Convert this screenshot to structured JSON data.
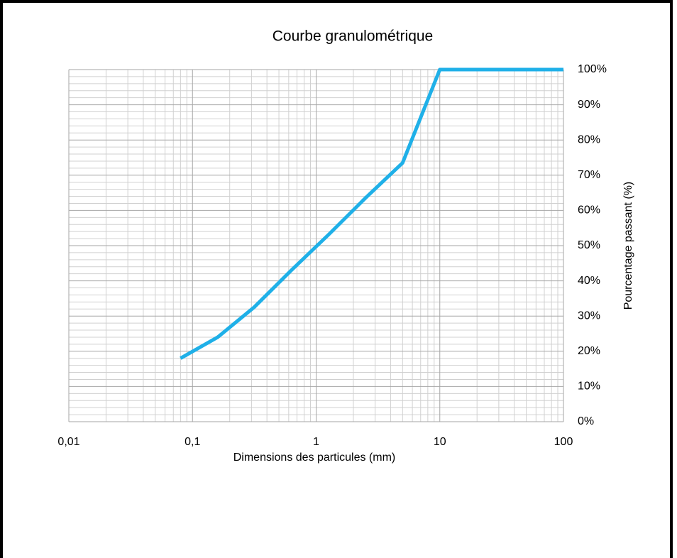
{
  "chart_data": {
    "type": "line",
    "title": "Courbe granulométrique",
    "x_label": "Dimensions des particules (mm)",
    "y_label": "Pourcentage passant (%)",
    "x": [
      0.08,
      0.16,
      0.315,
      0.63,
      1.25,
      2.5,
      5,
      10,
      100
    ],
    "series": [
      {
        "name": "Pourcentage passant",
        "color": "#1fb0e8",
        "values": [
          18,
          24,
          32.5,
          43,
          53,
          63.5,
          73.5,
          100,
          100
        ]
      }
    ],
    "xlim": [
      0.01,
      100
    ],
    "x_log": true,
    "xticks": [
      {
        "value": 0.01,
        "label": "0,01"
      },
      {
        "value": 0.1,
        "label": "0,1"
      },
      1,
      10,
      100
    ],
    "ylim": [
      0,
      100
    ],
    "yticks": [
      {
        "value": 0,
        "label": "0%"
      },
      {
        "value": 10,
        "label": "10%"
      },
      {
        "value": 20,
        "label": "20%"
      },
      {
        "value": 30,
        "label": "30%"
      },
      {
        "value": 40,
        "label": "40%"
      },
      {
        "value": 50,
        "label": "50%"
      },
      {
        "value": 60,
        "label": "60%"
      },
      {
        "value": 70,
        "label": "70%"
      },
      {
        "value": 80,
        "label": "80%"
      },
      {
        "value": 90,
        "label": "90%"
      },
      {
        "value": 100,
        "label": "100%"
      }
    ],
    "y_axis_side": "right",
    "grid": true,
    "minor_grid": true
  }
}
